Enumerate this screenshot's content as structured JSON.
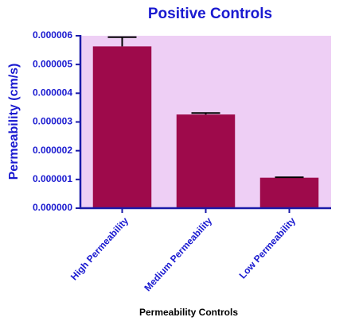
{
  "chart_data": {
    "type": "bar",
    "title": "Positive Controls",
    "x_label": "Permeability Controls",
    "y_label": "Permeability (cm/s)",
    "categories": [
      "High Permeability",
      "Medium Permeability",
      "Low Permeability"
    ],
    "values": [
      5.63e-06,
      3.26e-06,
      1.06e-06
    ],
    "errors": [
      3.2e-07,
      5e-08,
      1.5e-08
    ],
    "color": "#9e0a4b",
    "background": "#eecff5",
    "axis_color": "#1a1aa8",
    "ylim": [
      0,
      6e-06
    ],
    "yticks": [
      {
        "value": 0,
        "label": "0.000000"
      },
      {
        "value": 1e-06,
        "label": "0.000001"
      },
      {
        "value": 2e-06,
        "label": "0.000002"
      },
      {
        "value": 3e-06,
        "label": "0.000003"
      },
      {
        "value": 4e-06,
        "label": "0.000004"
      },
      {
        "value": 5e-06,
        "label": "0.000005"
      },
      {
        "value": 6e-06,
        "label": "0.000006"
      }
    ]
  }
}
